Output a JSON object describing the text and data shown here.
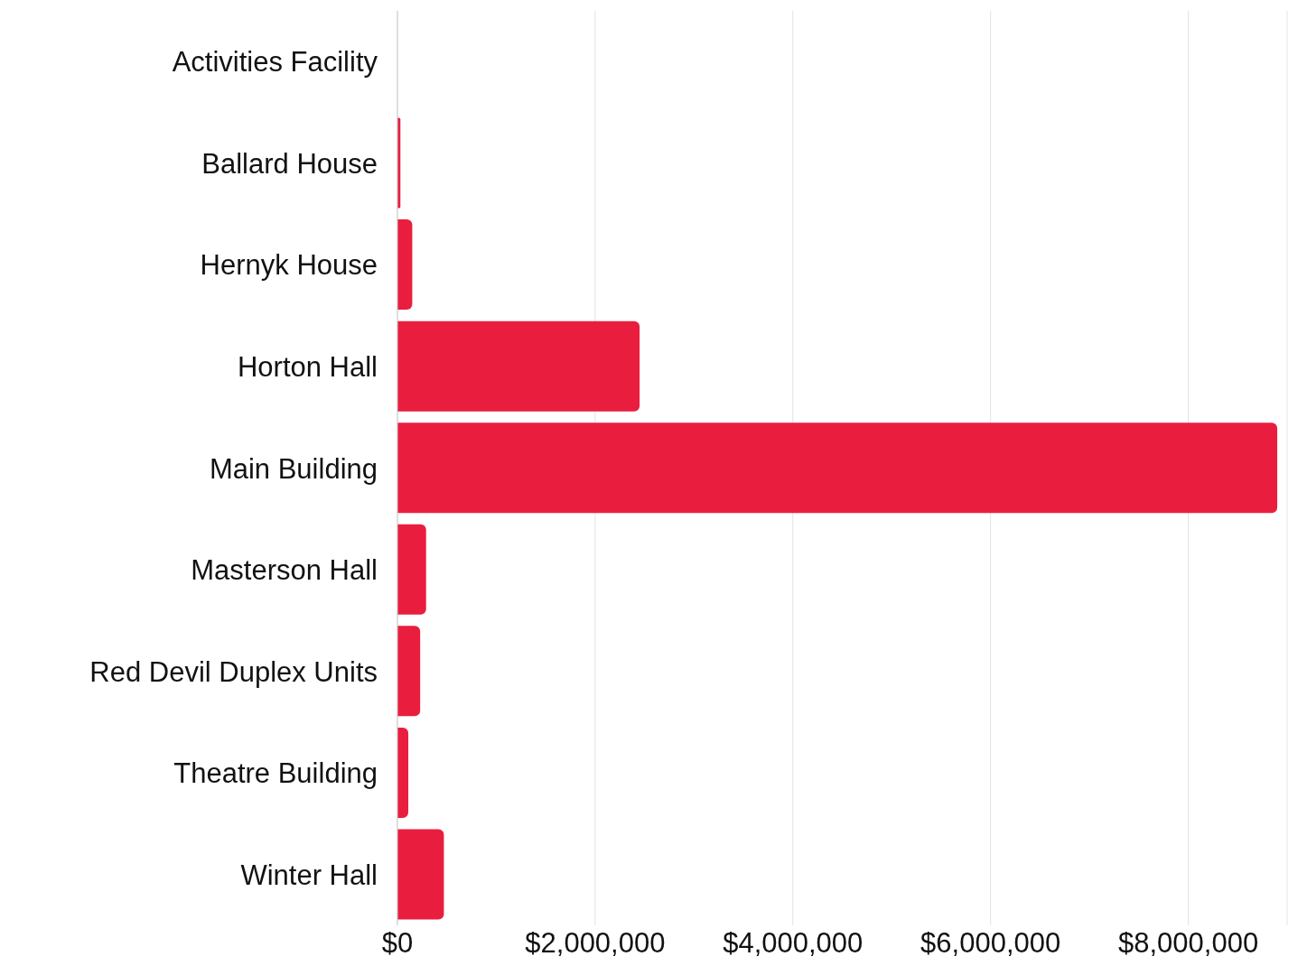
{
  "chart_data": {
    "type": "bar",
    "orientation": "horizontal",
    "categories": [
      "Activities Facility",
      "Ballard House",
      "Hernyk House",
      "Horton Hall",
      "Main Building",
      "Masterson Hall",
      "Red Devil Duplex Units",
      "Theatre Building",
      "Winter Hall"
    ],
    "values": [
      0,
      30000,
      150000,
      2450000,
      8900000,
      290000,
      230000,
      110000,
      470000
    ],
    "color": "#e91e3f",
    "xlim": [
      0,
      9000000
    ],
    "xticks": [
      {
        "value": 0,
        "label": "$0"
      },
      {
        "value": 2000000,
        "label": "$2,000,000"
      },
      {
        "value": 4000000,
        "label": "$4,000,000"
      },
      {
        "value": 6000000,
        "label": "$6,000,000"
      },
      {
        "value": 8000000,
        "label": "$8,000,000"
      }
    ],
    "grid": "x"
  }
}
